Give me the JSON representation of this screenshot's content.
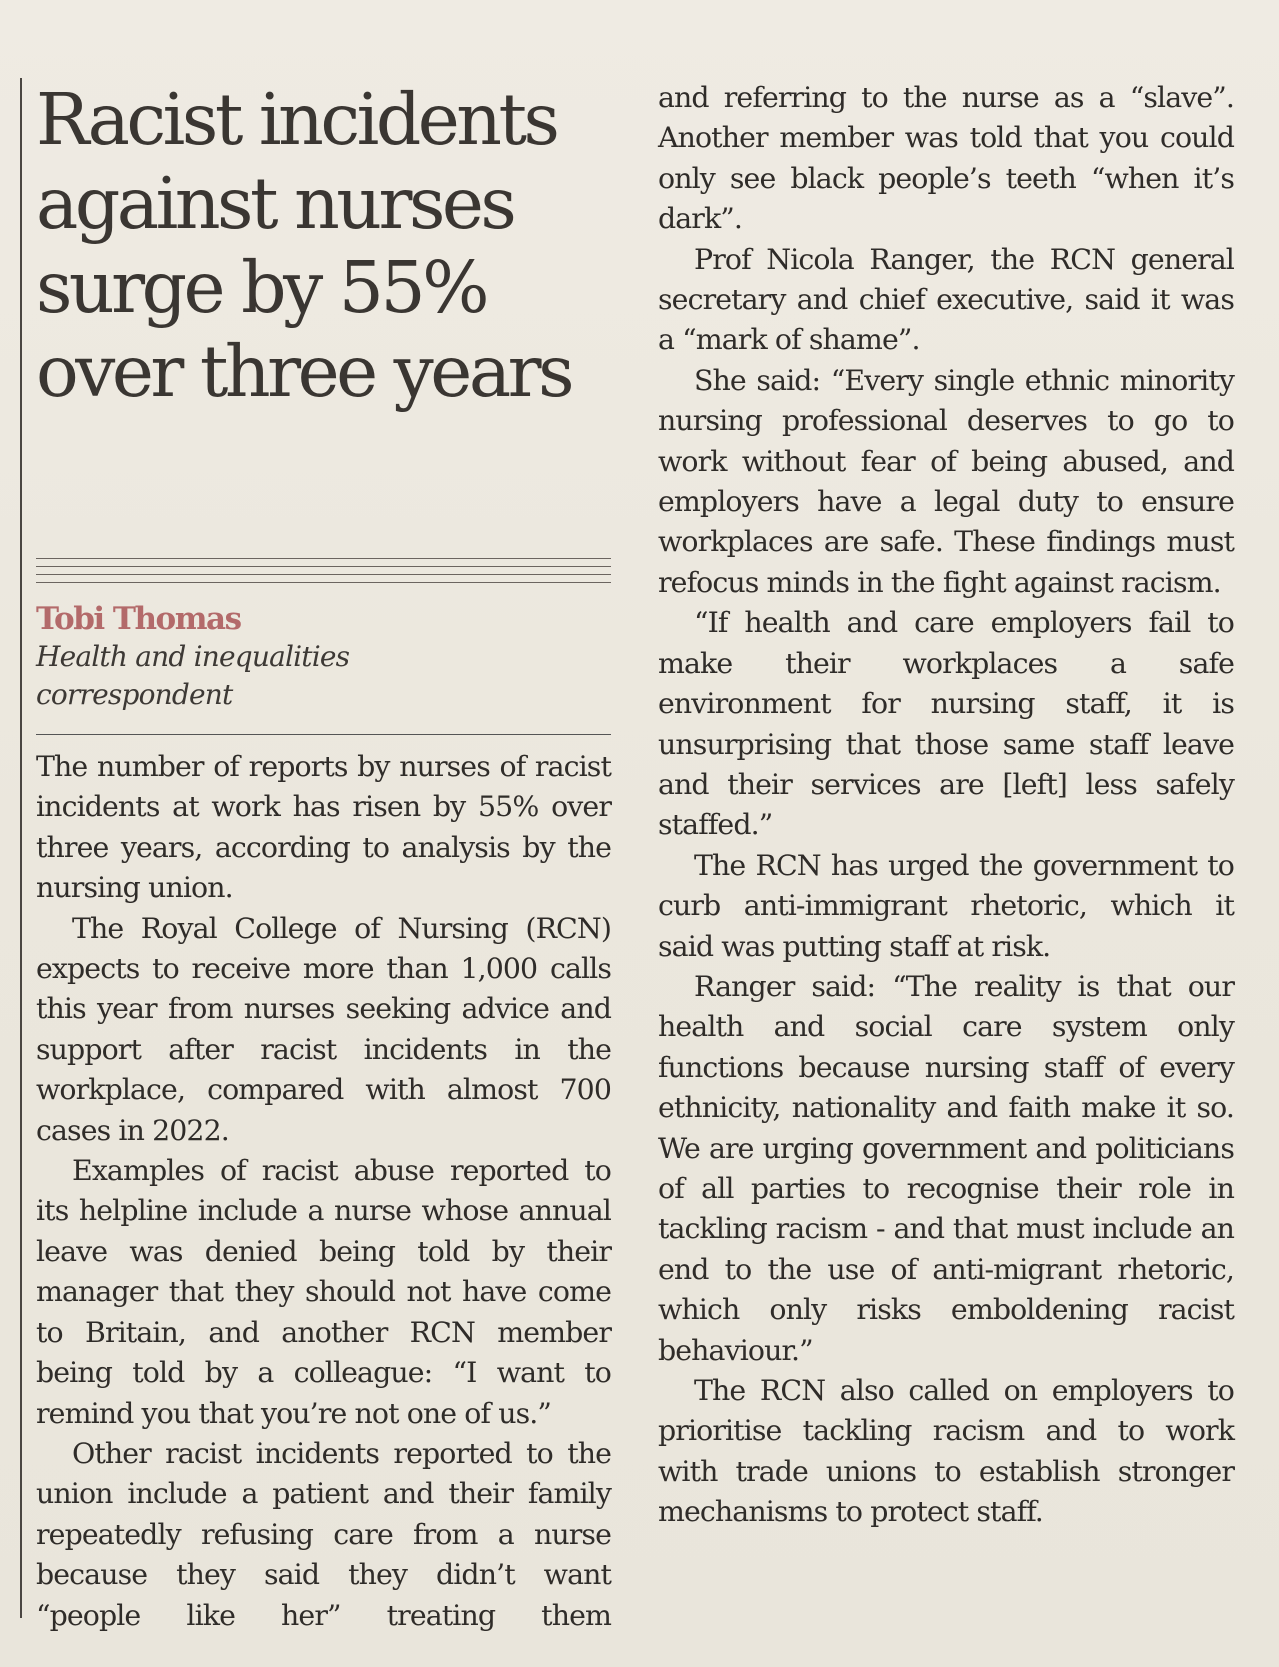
{
  "article": {
    "headline_lines": [
      "Racist incidents",
      "against nurses",
      "surge by 55%",
      "over three years"
    ],
    "byline": {
      "name": "Tobi Thomas",
      "role_lines": [
        "Health and inequalities",
        "correspondent"
      ]
    },
    "left_column_paragraphs": [
      "The number of reports by nurses of racist incidents at work has risen by 55% over three years, according to analysis by the nursing union.",
      "The Royal College of Nursing (RCN) expects to receive more than 1,000 calls this year from nurses seeking advice and support after racist incidents in the workplace, compared with almost 700 cases in 2022.",
      "Examples of racist abuse reported to its helpline include a nurse whose annual leave was denied being told by their manager that they should not have come to Britain, and another RCN member being told by a colleague: “I want to remind you that you’re not one of us.”",
      "Other racist incidents reported to the union include a patient and their family repeatedly refusing care from a nurse because they said they didn’t want “people like her” treating them"
    ],
    "right_column_paragraphs": [
      "and referring to the nurse as a “slave”. Another member was told that you could only see black people’s teeth “when it’s dark”.",
      "Prof Nicola Ranger, the RCN general secretary and chief executive, said it was a “mark of shame”.",
      "She said: “Every single ethnic minority nursing professional deserves to go to work without fear of being abused, and employers have a legal duty to ensure workplaces are safe. These findings must refocus minds in the fight against racism.",
      "“If health and care employers fail to make their workplaces a safe environment for nursing staff, it is unsurprising that those same staff leave and their services are [left] less safely staffed.”",
      "The RCN has urged the government to curb anti-immigrant rhetoric, which it said was putting staff at risk.",
      "Ranger said: “The reality is that our health and social care system only functions because nursing staff of every ethnicity, nationality and faith make it so. We are urging government and politicians of all parties to recognise their role in tackling racism - and that must include an end to the use of anti-migrant rhetoric, which only risks emboldening racist behaviour.”",
      "The RCN also called on employers to prioritise tackling racism and to work with trade unions to establish stronger mechanisms to protect staff."
    ]
  }
}
